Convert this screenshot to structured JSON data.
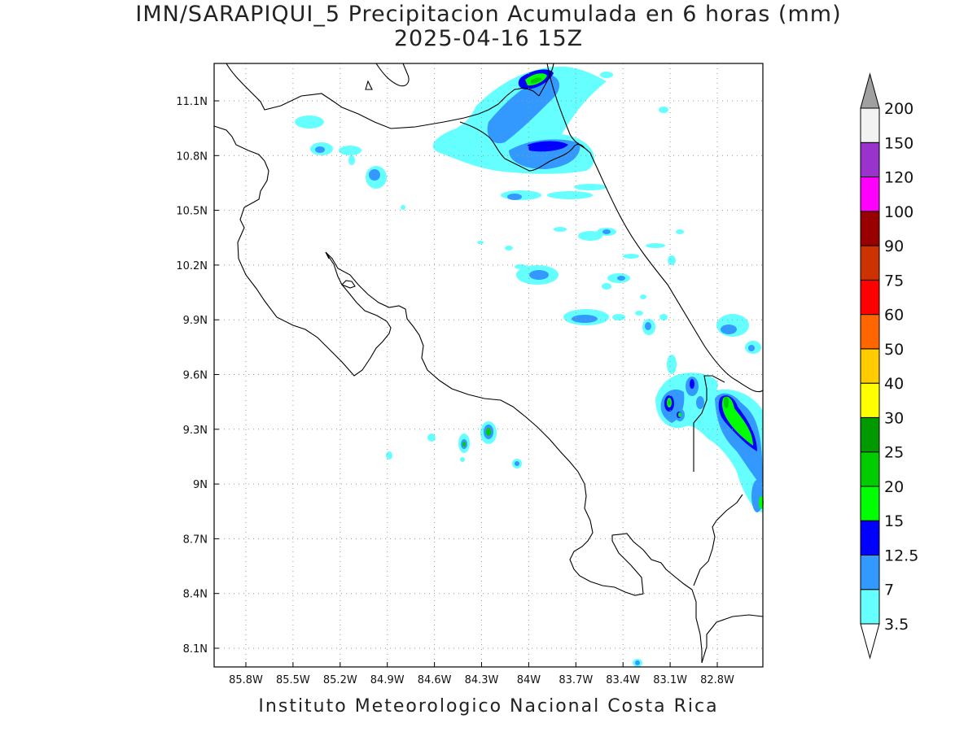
{
  "header": {
    "title": "IMN/SARAPIQUI_5 Precipitacion Acumulada en 6 horas (mm)",
    "subtitle": "2025-04-16 15Z"
  },
  "footer": {
    "credit": "Instituto Meteorologico Nacional Costa Rica"
  },
  "map": {
    "lon_ticks": [
      "85.8W",
      "85.5W",
      "85.2W",
      "84.9W",
      "84.6W",
      "84.3W",
      "84W",
      "83.7W",
      "83.4W",
      "83.1W",
      "82.8W"
    ],
    "lat_ticks": [
      "11.1N",
      "10.8N",
      "10.5N",
      "10.2N",
      "9.9N",
      "9.6N",
      "9.3N",
      "9N",
      "8.7N",
      "8.4N",
      "8.1N"
    ],
    "grid": "dotted"
  },
  "legend": {
    "levels": [
      "3.5",
      "7",
      "12.5",
      "15",
      "20",
      "25",
      "30",
      "40",
      "50",
      "60",
      "75",
      "90",
      "100",
      "120",
      "150",
      "200"
    ],
    "colors": [
      "#66ffff",
      "#3399ff",
      "#0000ff",
      "#00ff00",
      "#00cc00",
      "#009900",
      "#ffff00",
      "#ffcc00",
      "#ff6600",
      "#ff0000",
      "#cc3300",
      "#990000",
      "#ff00ff",
      "#9933cc",
      "#f2f2f2",
      "#a0a0a0"
    ]
  }
}
